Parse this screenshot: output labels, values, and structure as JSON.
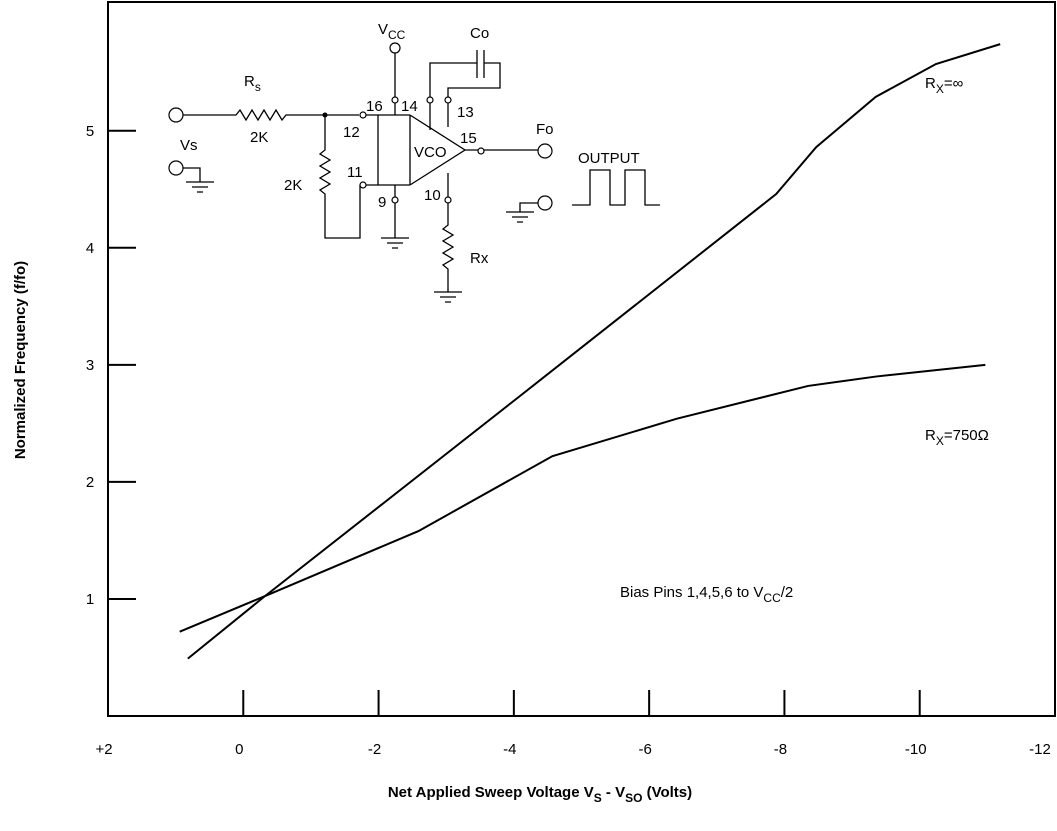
{
  "chart_data": {
    "type": "line",
    "xlabel": [
      "Net Applied Sweep Voltage V",
      "S",
      " - V",
      "SO",
      " (Volts)"
    ],
    "ylabel": "Normalized Frequency (f/fo)",
    "xlim": [
      2,
      -12
    ],
    "ylim": [
      0,
      6.1
    ],
    "xticks": [
      {
        "value": 2,
        "label": "+2"
      },
      0,
      -2,
      -4,
      -6,
      -8,
      -10,
      -12
    ],
    "yticks": [
      1,
      2,
      3,
      4,
      5
    ],
    "series": [
      {
        "name": [
          "R",
          "X",
          "=∞"
        ],
        "color": "#000000",
        "x": [
          0.82,
          -0.29,
          -4.06,
          -7.88,
          -8.47,
          -9.35,
          -10.24,
          -11.19
        ],
        "values": [
          0.49,
          1.01,
          2.72,
          4.46,
          4.86,
          5.29,
          5.57,
          5.74
        ]
      },
      {
        "name": [
          "R",
          "X",
          "=750Ω"
        ],
        "color": "#000000",
        "x": [
          0.94,
          -0.26,
          -2.59,
          -4.57,
          -6.41,
          -8.35,
          -9.35,
          -10.97
        ],
        "values": [
          0.72,
          1.01,
          1.58,
          2.22,
          2.54,
          2.82,
          2.9,
          3.0
        ]
      }
    ],
    "annotations": [
      [
        "Bias Pins 1,4,5,6 to V",
        "CC",
        "/2"
      ]
    ]
  },
  "diagram": {
    "vcc": [
      "V",
      "CC"
    ],
    "co": "Co",
    "rs": [
      "R",
      "s"
    ],
    "rs_value": "2K",
    "r_value": "2K",
    "vs": "Vs",
    "pins": [
      "16",
      "14",
      "13",
      "12",
      "11",
      "15",
      "9",
      "10"
    ],
    "block": "VCO",
    "fo": "Fo",
    "output": "OUTPUT",
    "rx": "Rx"
  }
}
